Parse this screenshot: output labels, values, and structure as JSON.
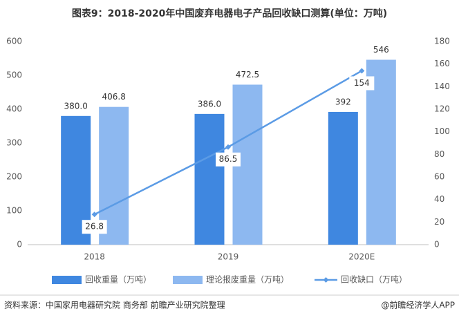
{
  "chart_data": {
    "type": "bar-line",
    "title": "图表9：2018-2020年中国废弃电器电子产品回收缺口测算(单位：万吨)",
    "categories": [
      "2018",
      "2019",
      "2020E"
    ],
    "series": [
      {
        "name": "回收重量（万吨）",
        "type": "bar",
        "color": "#3f87e0",
        "values": [
          380.0,
          386.0,
          392
        ],
        "value_labels": [
          "380.0",
          "386.0",
          "392"
        ]
      },
      {
        "name": "理论报废重量（万吨）",
        "type": "bar",
        "color": "#8db8f0",
        "values": [
          406.8,
          472.5,
          546
        ]
      },
      {
        "name": "回收缺口（万吨）",
        "type": "line",
        "axis": "y2",
        "color": "#5b9be5",
        "values": [
          26.8,
          86.5,
          154
        ]
      }
    ],
    "ylim": [
      0,
      600
    ],
    "yticks": [
      0,
      100,
      200,
      300,
      400,
      500,
      600
    ],
    "y2lim": [
      0,
      180
    ],
    "y2ticks": [
      0,
      20,
      40,
      60,
      80,
      100,
      120,
      140,
      160,
      180
    ],
    "legend": "bottom",
    "source": "资料来源：中国家用电器研究院 商务部 前瞻产业研究院整理",
    "credit": "@前瞻经济学人APP"
  }
}
